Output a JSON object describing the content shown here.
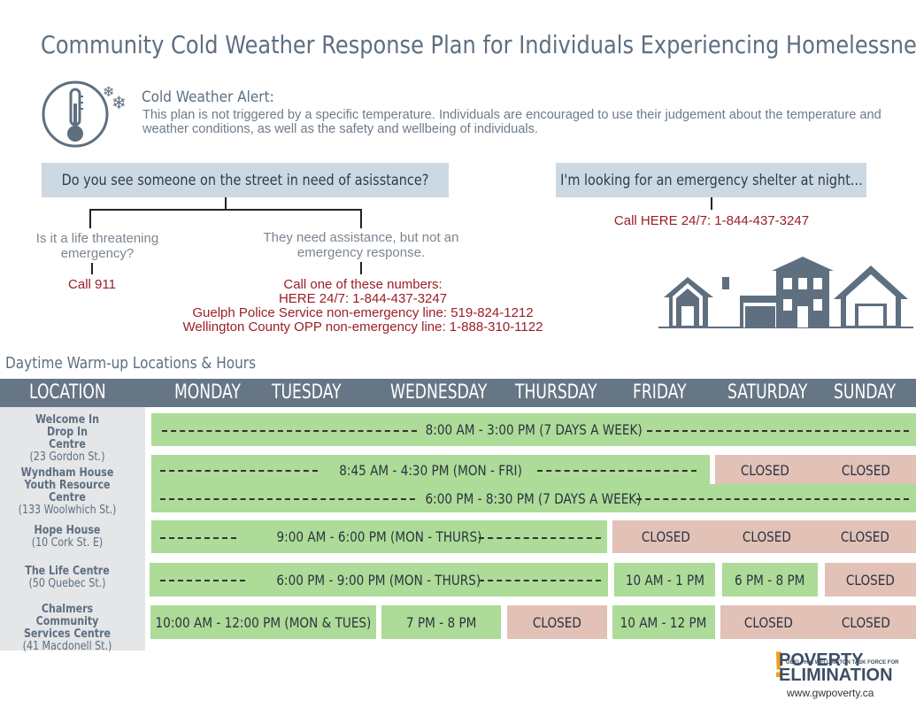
{
  "title": "Community Cold Weather Response Plan for Individuals Experiencing Homelessness",
  "alert": {
    "heading": "Cold Weather Alert:",
    "body": "This plan is not triggered by a specific temperature. Individuals are encouraged to use their judgement about the temperature and weather conditions, as well as the safety and wellbeing of individuals."
  },
  "street": {
    "question": "Do you see someone on the street in need of asisstance?",
    "left_q": "Is it a life threatening emergency?",
    "left_a": "Call 911",
    "right_q": "They need assistance, but not an emergency response.",
    "right_a": [
      "Call one of these numbers:",
      "HERE 24/7: 1-844-437-3247",
      "Guelph Police Service non-emergency line: 519-824-1212",
      "Wellington County OPP non-emergency line: 1-888-310-1122"
    ]
  },
  "shelter": {
    "question": "I'm looking for an emergency shelter at night...",
    "answer": "Call HERE 24/7: 1-844-437-3247"
  },
  "schedule": {
    "section_title": "Daytime Warm-up Locations & Hours",
    "headers": [
      "LOCATION",
      "MONDAY",
      "TUESDAY",
      "WEDNESDAY",
      "THURSDAY",
      "FRIDAY",
      "SATURDAY",
      "SUNDAY"
    ],
    "locations": [
      {
        "name": "Welcome In Drop In Centre",
        "address": "(23 Gordon St.)"
      },
      {
        "name": "Wyndham House Youth Resource Centre",
        "address": "(133 Woolwhich St.)"
      },
      {
        "name": "Hope House",
        "address": "(10 Cork St. E)"
      },
      {
        "name": "The Life Centre",
        "address": "(50 Quebec St.)"
      },
      {
        "name": "Chalmers Community Services Centre",
        "address": "(41 Macdonell St.)"
      }
    ],
    "hours": {
      "welcome": "8:00 AM - 3:00 PM (7 DAYS A WEEK)",
      "wyndham_day": "8:45 AM - 4:30 PM (MON - FRI)",
      "wyndham_eve": "6:00 PM - 8:30 PM (7 DAYS A WEEK)",
      "hope": "9:00 AM - 6:00 PM (MON - THURS)",
      "life": "6:00 PM - 9:00 PM (MON - THURS)",
      "life_fri": "10 AM - 1 PM",
      "life_sat": "6 PM - 8 PM",
      "chalmers_montue": "10:00 AM - 12:00 PM (MON & TUES)",
      "chalmers_wed": "7 PM - 8 PM",
      "chalmers_fri": "10 AM - 12 PM",
      "closed": "CLOSED"
    }
  },
  "logo": {
    "line1": "POVERTY",
    "line2": "GUELPH & WELLINGTON TASK FORCE FOR",
    "line3": "ELIMINATION",
    "url": "www.gwpoverty.ca"
  }
}
